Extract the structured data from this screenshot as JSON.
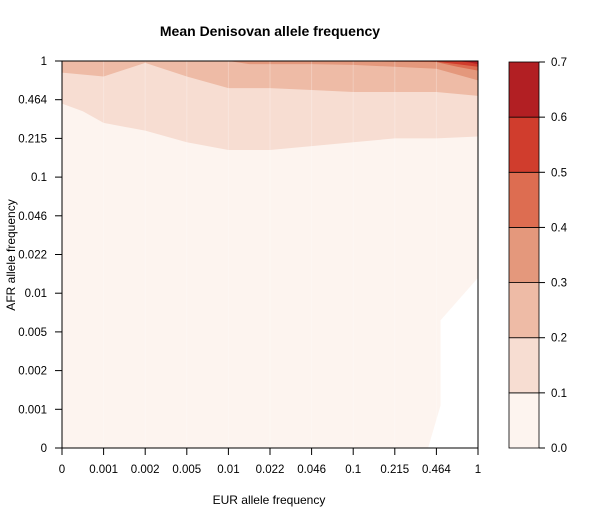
{
  "chart_data": {
    "type": "contour",
    "title": "Mean Denisovan allele frequency",
    "xlabel": "EUR allele frequency",
    "ylabel": "AFR allele frequency",
    "x_ticks": [
      "0",
      "0.001",
      "0.002",
      "0.005",
      "0.01",
      "0.022",
      "0.046",
      "0.1",
      "0.215",
      "0.464",
      "1"
    ],
    "y_ticks": [
      "0",
      "0.001",
      "0.002",
      "0.005",
      "0.01",
      "0.022",
      "0.046",
      "0.1",
      "0.215",
      "0.464",
      "1"
    ],
    "legend": {
      "placement": "right",
      "levels": [
        0.0,
        0.1,
        0.2,
        0.3,
        0.4,
        0.5,
        0.6,
        0.7
      ],
      "level_labels": [
        "0.0",
        "0.1",
        "0.2",
        "0.3",
        "0.4",
        "0.5",
        "0.6",
        "0.7"
      ],
      "colors": [
        "#fdf4ef",
        "#f7ddd2",
        "#eebba6",
        "#e4987c",
        "#dd6d51",
        "#d03d2d",
        "#b21f23"
      ]
    },
    "contour_boundaries": [
      {
        "level": 0.1,
        "x_index": [
          0,
          0.5,
          1,
          2,
          3,
          4,
          5,
          6,
          7,
          8,
          9,
          10
        ],
        "y_index": [
          8.9,
          8.7,
          8.4,
          8.2,
          7.9,
          7.7,
          7.7,
          7.8,
          7.9,
          8.0,
          8.0,
          8.05
        ]
      },
      {
        "level": 0.2,
        "x_index": [
          0,
          1,
          2,
          3,
          4,
          5,
          6,
          7,
          8,
          9,
          10
        ],
        "y_index": [
          9.7,
          9.6,
          9.95,
          9.6,
          9.3,
          9.3,
          9.25,
          9.2,
          9.2,
          9.2,
          9.1
        ]
      },
      {
        "level": 0.3,
        "x_index": [
          0,
          4,
          4.5,
          6,
          7,
          8,
          9,
          10
        ],
        "y_index": [
          10,
          10,
          9.92,
          9.92,
          9.9,
          9.85,
          9.8,
          9.5
        ]
      },
      {
        "level": 0.4,
        "x_index": [
          7,
          8,
          9,
          9.5,
          10
        ],
        "y_index": [
          10,
          9.98,
          9.97,
          9.85,
          9.75
        ]
      },
      {
        "level": 0.5,
        "x_index": [
          8.5,
          9,
          9.5,
          10
        ],
        "y_index": [
          10,
          9.98,
          9.92,
          9.85
        ]
      },
      {
        "level": 0.6,
        "x_index": [
          9.5,
          9.8,
          10
        ],
        "y_index": [
          10,
          9.96,
          9.92
        ]
      }
    ],
    "white_region_note": ""
  }
}
